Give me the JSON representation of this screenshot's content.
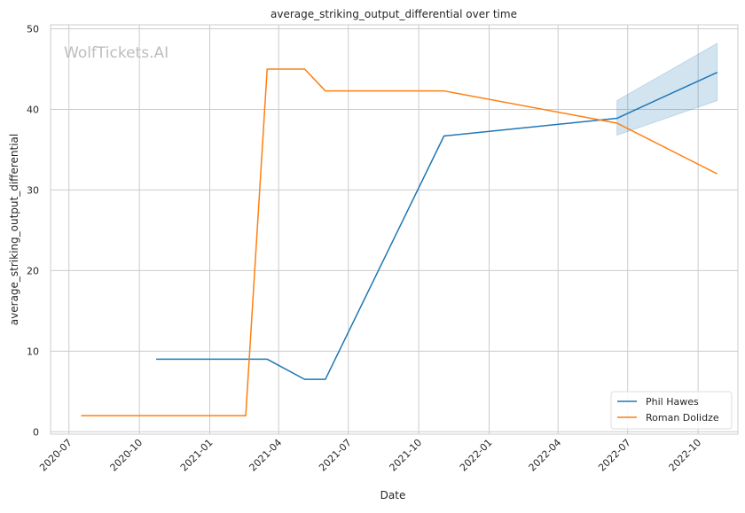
{
  "watermark": "WolfTickets.AI",
  "chart_data": {
    "type": "line",
    "title": "average_striking_output_differential over time",
    "xlabel": "Date",
    "ylabel": "average_striking_output_differential",
    "xlim": [
      "2020-06-07",
      "2022-11-22"
    ],
    "ylim": [
      -0.3,
      50.5
    ],
    "grid": true,
    "legend_position": "bottom-right",
    "x_ticks": [
      "2020-07-01",
      "2020-10-01",
      "2021-01-01",
      "2021-04-01",
      "2021-07-01",
      "2021-10-01",
      "2022-01-01",
      "2022-04-01",
      "2022-07-01",
      "2022-10-01"
    ],
    "x_tick_labels": [
      "2020-07",
      "2020-10",
      "2021-01",
      "2021-04",
      "2021-07",
      "2021-10",
      "2022-01",
      "2022-04",
      "2022-07",
      "2022-10"
    ],
    "y_ticks": [
      0,
      10,
      20,
      30,
      40,
      50
    ],
    "y_tick_labels": [
      "0",
      "10",
      "20",
      "30",
      "40",
      "50"
    ],
    "series": [
      {
        "name": "Phil Hawes",
        "color": "#1f77b4",
        "x": [
          "2020-10-23",
          "2021-03-17",
          "2021-05-05",
          "2021-06-01",
          "2021-11-03",
          "2022-06-17",
          "2022-10-26"
        ],
        "y": [
          9.0,
          9.0,
          6.5,
          6.5,
          36.7,
          38.9,
          44.6
        ],
        "ci": {
          "x": [
            "2022-06-17",
            "2022-10-26"
          ],
          "lower": [
            36.8,
            41.1
          ],
          "upper": [
            41.1,
            48.2
          ]
        }
      },
      {
        "name": "Roman Dolidze",
        "color": "#ff7f0e",
        "x": [
          "2020-07-17",
          "2021-02-17",
          "2021-03-17",
          "2021-05-05",
          "2021-06-01",
          "2021-11-03",
          "2022-06-17",
          "2022-10-26"
        ],
        "y": [
          2.0,
          2.0,
          45.0,
          45.0,
          42.3,
          42.3,
          38.3,
          32.0
        ]
      }
    ]
  }
}
